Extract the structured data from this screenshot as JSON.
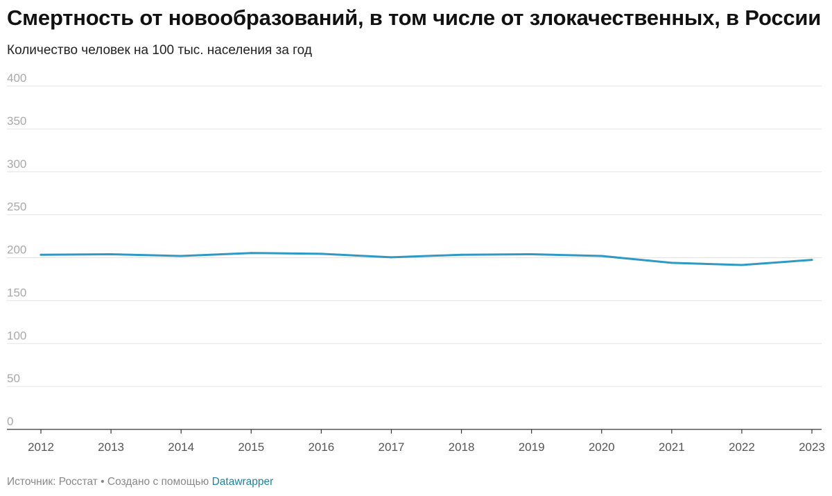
{
  "chart_data": {
    "type": "line",
    "title": "Смертность от новообразований, в том числе от злокачественных, в России",
    "subtitle": "Количество человек на 100 тыс. населения за год",
    "xlabel": "",
    "ylabel": "",
    "categories": [
      "2012",
      "2013",
      "2014",
      "2015",
      "2016",
      "2017",
      "2018",
      "2019",
      "2020",
      "2021",
      "2022",
      "2023"
    ],
    "series": [
      {
        "values": [
          203.5,
          204,
          202,
          205.5,
          204.5,
          200.5,
          203.5,
          204,
          202,
          194,
          191.5,
          197.5
        ]
      }
    ],
    "ylim": [
      0,
      400
    ],
    "yticks": [
      0,
      50,
      100,
      150,
      200,
      250,
      300,
      350,
      400
    ],
    "grid": true,
    "line_color": "#2e9ac4"
  },
  "footer": {
    "source": "Источник: Росстат • Создано с помощью ",
    "brand": "Datawrapper"
  }
}
